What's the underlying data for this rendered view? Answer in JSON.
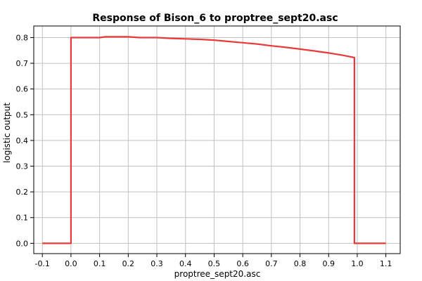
{
  "chart_data": {
    "type": "line",
    "title": "Response of Bison_6 to proptree_sept20.asc",
    "xlabel": "proptree_sept20.asc",
    "ylabel": "logistic output",
    "xlim": [
      -0.13,
      1.15
    ],
    "ylim": [
      -0.04,
      0.845
    ],
    "xticks": [
      -0.1,
      0.0,
      0.1,
      0.2,
      0.3,
      0.4,
      0.5,
      0.6,
      0.7,
      0.8,
      0.9,
      1.0,
      1.1
    ],
    "xtick_labels": [
      "-0.1",
      "0.0",
      "0.1",
      "0.2",
      "0.3",
      "0.4",
      "0.5",
      "0.6",
      "0.7",
      "0.8",
      "0.9",
      "1.0",
      "1.1"
    ],
    "yticks": [
      0.0,
      0.1,
      0.2,
      0.3,
      0.4,
      0.5,
      0.6,
      0.7,
      0.8
    ],
    "ytick_labels": [
      "0.0",
      "0.1",
      "0.2",
      "0.3",
      "0.4",
      "0.5",
      "0.6",
      "0.7",
      "0.8"
    ],
    "grid": true,
    "series": [
      {
        "color": "#e83a3a",
        "x": [
          -0.1,
          0.0,
          0.0,
          0.1,
          0.12,
          0.2,
          0.24,
          0.3,
          0.35,
          0.4,
          0.45,
          0.5,
          0.55,
          0.6,
          0.65,
          0.7,
          0.75,
          0.8,
          0.85,
          0.9,
          0.95,
          0.99,
          0.99,
          1.0,
          1.1
        ],
        "y": [
          0.0,
          0.0,
          0.8,
          0.8,
          0.803,
          0.803,
          0.8,
          0.8,
          0.797,
          0.795,
          0.793,
          0.79,
          0.785,
          0.78,
          0.775,
          0.768,
          0.762,
          0.755,
          0.748,
          0.74,
          0.731,
          0.722,
          0.0,
          0.0,
          0.0
        ]
      }
    ]
  }
}
